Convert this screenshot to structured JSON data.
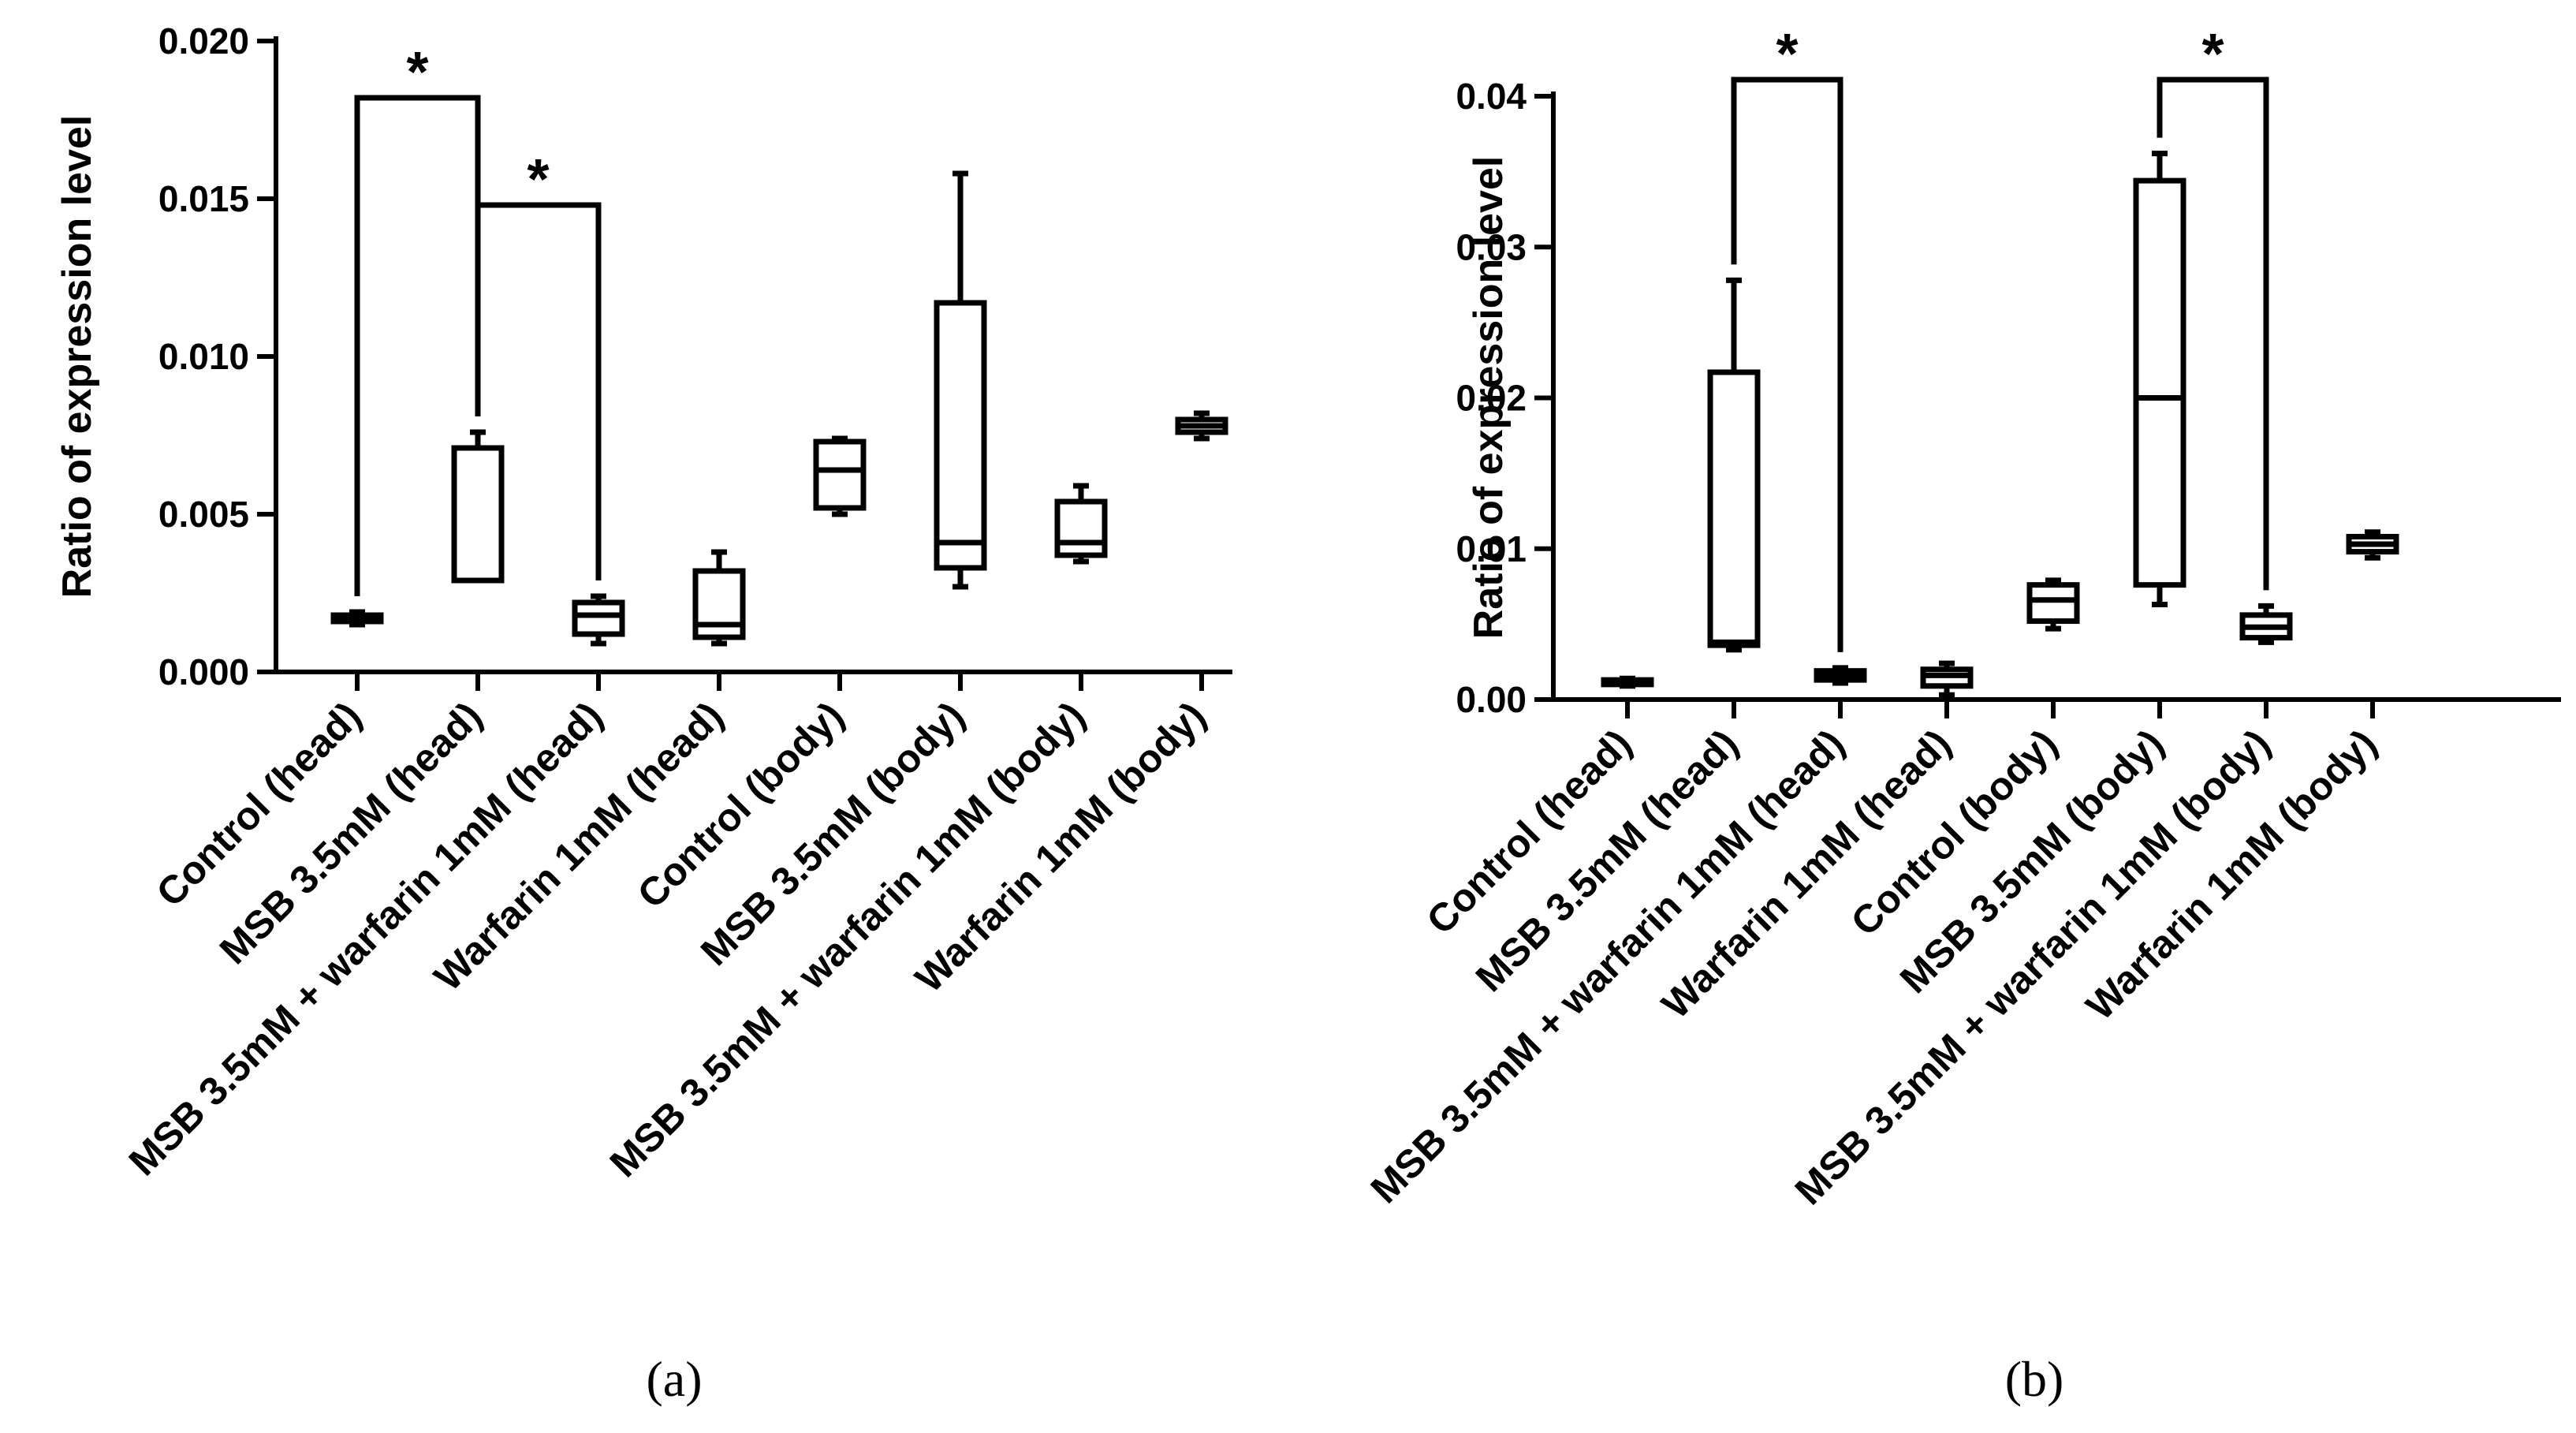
{
  "chart_data": [
    {
      "type": "box",
      "panel_label": "(a)",
      "ylabel": "Ratio of expression level",
      "ylim": [
        0,
        0.02
      ],
      "yticks": [
        "0.000",
        "0.005",
        "0.010",
        "0.015",
        "0.020"
      ],
      "ytick_values": [
        0,
        0.005,
        0.01,
        0.015,
        0.02
      ],
      "categories": [
        "Control (head)",
        "MSB 3.5mM (head)",
        "MSB 3.5mM + warfarin 1mM (head)",
        "Warfarin 1mM (head)",
        "Control (body)",
        "MSB 3.5mM (body)",
        "MSB 3.5mM + warfarin 1mM (body)",
        "Warfarin 1mM (body)"
      ],
      "boxes": [
        {
          "min": 0.0015,
          "q1": 0.0016,
          "median": 0.0017,
          "q3": 0.0018,
          "max": 0.0019
        },
        {
          "min": 0.0029,
          "q1": 0.0029,
          "median": 0.0029,
          "q3": 0.0071,
          "max": 0.0076
        },
        {
          "min": 0.0009,
          "q1": 0.0012,
          "median": 0.0018,
          "q3": 0.0022,
          "max": 0.0024
        },
        {
          "min": 0.0009,
          "q1": 0.0011,
          "median": 0.0015,
          "q3": 0.0032,
          "max": 0.0038
        },
        {
          "min": 0.005,
          "q1": 0.0052,
          "median": 0.0064,
          "q3": 0.0073,
          "max": 0.0074
        },
        {
          "min": 0.0027,
          "q1": 0.0033,
          "median": 0.0041,
          "q3": 0.0117,
          "max": 0.0158
        },
        {
          "min": 0.0035,
          "q1": 0.0037,
          "median": 0.0041,
          "q3": 0.0054,
          "max": 0.0059
        },
        {
          "min": 0.0074,
          "q1": 0.0076,
          "median": 0.0078,
          "q3": 0.008,
          "max": 0.0082
        }
      ],
      "significance": [
        {
          "from": 0,
          "to": 1,
          "y": 0.0182,
          "label": "*"
        },
        {
          "from": 1,
          "to": 2,
          "y": 0.0148,
          "label": "*"
        }
      ]
    },
    {
      "type": "box",
      "panel_label": "(b)",
      "ylabel": "Ratio of expression level",
      "ylim": [
        0,
        0.04
      ],
      "yticks": [
        "0.00",
        "0.01",
        "0.02",
        "0.03",
        "0.04"
      ],
      "ytick_values": [
        0,
        0.01,
        0.02,
        0.03,
        0.04
      ],
      "categories": [
        "Control (head)",
        "MSB 3.5mM (head)",
        "MSB 3.5mM + warfarin 1mM (head)",
        "Warfarin 1mM (head)",
        "Control (body)",
        "MSB 3.5mM (body)",
        "MSB 3.5mM + warfarin 1mM (body)",
        "Warfarin 1mM (body)"
      ],
      "boxes": [
        {
          "min": 0.0009,
          "q1": 0.001,
          "median": 0.0011,
          "q3": 0.0013,
          "max": 0.0014
        },
        {
          "min": 0.0033,
          "q1": 0.0036,
          "median": 0.0038,
          "q3": 0.0217,
          "max": 0.0278
        },
        {
          "min": 0.0011,
          "q1": 0.0013,
          "median": 0.0016,
          "q3": 0.0019,
          "max": 0.0021
        },
        {
          "min": 0.0003,
          "q1": 0.0009,
          "median": 0.0016,
          "q3": 0.002,
          "max": 0.0024
        },
        {
          "min": 0.0047,
          "q1": 0.0052,
          "median": 0.0066,
          "q3": 0.0076,
          "max": 0.0079
        },
        {
          "min": 0.0063,
          "q1": 0.0076,
          "median": 0.02,
          "q3": 0.0344,
          "max": 0.0362
        },
        {
          "min": 0.0038,
          "q1": 0.0041,
          "median": 0.0048,
          "q3": 0.0056,
          "max": 0.0062
        },
        {
          "min": 0.0094,
          "q1": 0.0098,
          "median": 0.0103,
          "q3": 0.0108,
          "max": 0.0111
        }
      ],
      "significance": [
        {
          "from": 1,
          "to": 2,
          "y": 0.0411,
          "label": "*"
        },
        {
          "from": 5,
          "to": 6,
          "y": 0.0411,
          "label": "*"
        }
      ]
    }
  ]
}
